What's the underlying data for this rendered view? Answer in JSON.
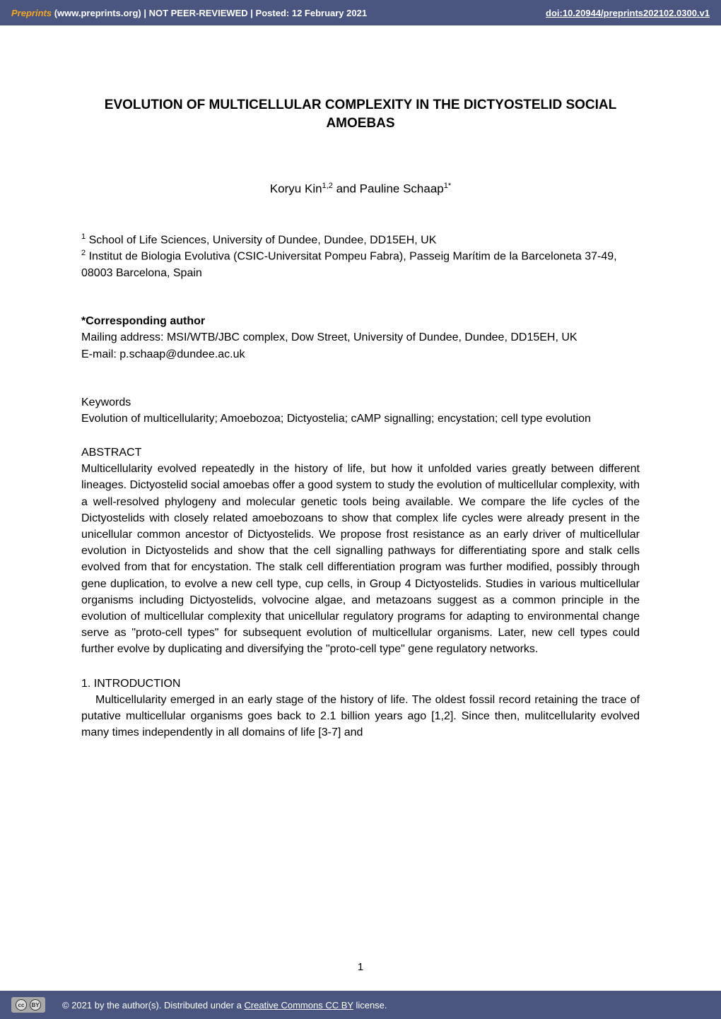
{
  "header": {
    "preprints_label": "Preprints",
    "meta_text": " (www.preprints.org)  |  NOT PEER-REVIEWED  |  Posted: 12 February 2021",
    "doi": "doi:10.20944/preprints202102.0300.v1"
  },
  "title": "EVOLUTION OF MULTICELLULAR COMPLEXITY IN THE DICTYOSTELID SOCIAL AMOEBAS",
  "authors": {
    "a1_name": "Koryu Kin",
    "a1_sup": "1,2",
    "joiner": " and ",
    "a2_name": "Pauline Schaap",
    "a2_sup": "1*"
  },
  "affiliations": {
    "aff1_sup": "1",
    "aff1_text": " School of Life Sciences, University of Dundee, Dundee, DD15EH, UK",
    "aff2_sup": "2",
    "aff2_text": " Institut de Biologia Evolutiva (CSIC-Universitat Pompeu Fabra), Passeig Marítim de la Barceloneta 37-49, 08003 Barcelona, Spain"
  },
  "corresponding": {
    "label": "*Corresponding author",
    "address": "Mailing address: MSI/WTB/JBC complex, Dow Street, University of Dundee, Dundee, DD15EH, UK",
    "email": "E-mail: p.schaap@dundee.ac.uk"
  },
  "keywords": {
    "label": "Keywords",
    "text": "Evolution of multicellularity; Amoebozoa; Dictyostelia; cAMP signalling; encystation; cell type evolution"
  },
  "abstract": {
    "label": "ABSTRACT",
    "text": "Multicellularity evolved repeatedly in the history of life, but how it unfolded varies greatly between different lineages. Dictyostelid social amoebas offer a good system to study the evolution of multicellular complexity, with a well-resolved phylogeny and molecular genetic tools being available. We compare the life cycles of the Dictyostelids with closely related amoebozoans to show that complex life cycles were already present in the unicellular common ancestor of Dictyostelids. We propose frost resistance as an early driver of multicellular evolution in Dictyostelids and show that the cell signalling pathways for differentiating spore and stalk cells evolved from that for encystation. The stalk cell differentiation program was further modified, possibly through gene duplication, to evolve a new cell type, cup cells, in Group 4 Dictyostelids. Studies in various multicellular organisms including Dictyostelids, volvocine algae, and metazoans suggest as a common principle in the evolution of multicellular complexity that unicellular regulatory programs for adapting to environmental change serve as \"proto-cell types\" for subsequent evolution of multicellular organisms. Later, new cell types could further evolve by duplicating and diversifying the \"proto-cell type\" gene regulatory networks."
  },
  "introduction": {
    "label": "1. INTRODUCTION",
    "text": "Multicellularity emerged in an early stage of the history of life. The oldest fossil record retaining the trace of putative multicellular organisms goes back to 2.1 billion years ago [1,2]. Since then, mulitcellularity evolved many times independently in all domains of life [3-7] and"
  },
  "page_number": "1",
  "footer": {
    "copyright_prefix": "©  2021 by the author(s). Distributed under a ",
    "license_link": "Creative Commons CC BY",
    "copyright_suffix": " license.",
    "cc_glyph": "cc",
    "by_glyph": "BY"
  },
  "colors": {
    "header_bg": "#4a5680",
    "accent": "#f5a623",
    "text": "#000000",
    "page_bg": "#ffffff",
    "header_text": "#ffffff"
  }
}
